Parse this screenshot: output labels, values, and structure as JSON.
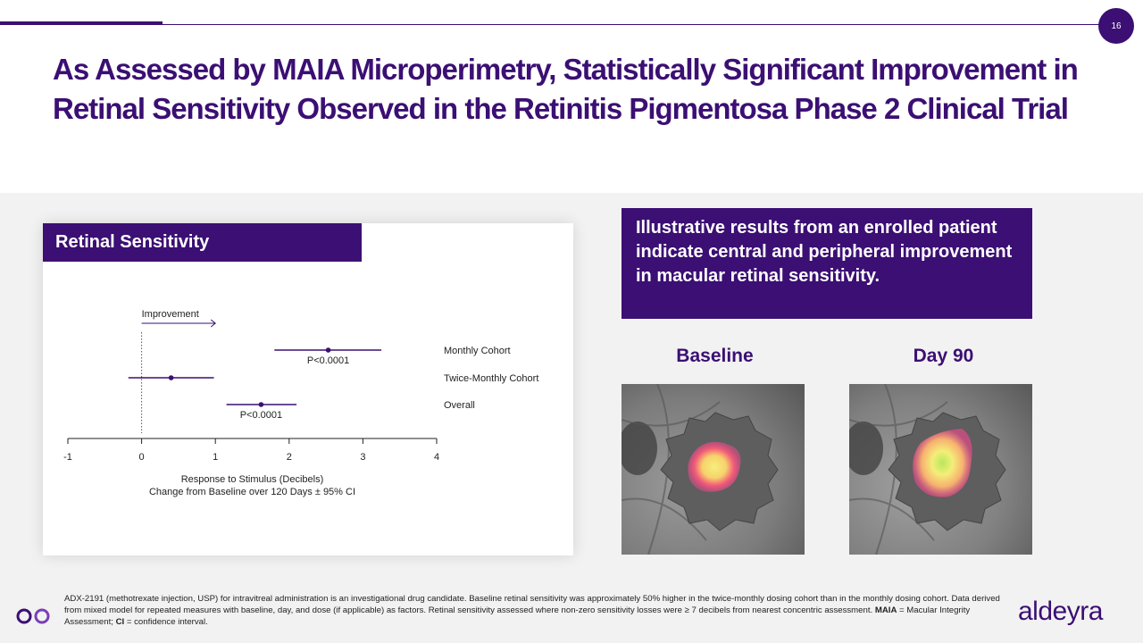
{
  "page_number": "16",
  "title": "As Assessed by MAIA Microperimetry, Statistically Significant Improvement in Retinal Sensitivity Observed in the Retinitis Pigmentosa Phase 2 Clinical Trial",
  "card": {
    "header": "Retinal Sensitivity"
  },
  "callout": "Illustrative results from an enrolled patient indicate central and peripheral improvement in macular retinal sensitivity.",
  "images": {
    "baseline_label": "Baseline",
    "day90_label": "Day 90"
  },
  "footnote": {
    "part1": "ADX-2191 (methotrexate injection, USP) for intravitreal administration is an investigational drug candidate. Baseline retinal sensitivity was approximately 50% higher in the twice-monthly dosing cohort than in the monthly dosing cohort. Data derived from mixed model for repeated measures with baseline, day, and dose (if applicable) as factors. Retinal sensitivity assessed where non-zero sensitivity losses were ≥ 7 decibels from nearest concentric assessment. ",
    "maia_abbr": "MAIA",
    "maia_def": " = Macular Integrity Assessment; ",
    "ci_abbr": "CI",
    "ci_def": " = confidence interval."
  },
  "logo": {
    "text": "aldeyra"
  },
  "colors": {
    "brand": "#3b0f73",
    "band": "#f2f2f2"
  },
  "chart_data": {
    "type": "forest",
    "xlabel": "Response to Stimulus (Decibels)",
    "xlabel2": "Change from Baseline over 120 Days ± 95% CI",
    "xlim": [
      -1,
      4
    ],
    "xticks": [
      -1,
      0,
      1,
      2,
      3,
      4
    ],
    "reference_line": 0,
    "direction_label": "Improvement",
    "series": [
      {
        "name": "Monthly Cohort",
        "estimate": 2.53,
        "ci_low": 1.8,
        "ci_high": 3.25,
        "p_value": "P<0.0001"
      },
      {
        "name": "Twice-Monthly Cohort",
        "estimate": 0.4,
        "ci_low": -0.18,
        "ci_high": 0.98,
        "p_value": ""
      },
      {
        "name": "Overall",
        "estimate": 1.62,
        "ci_low": 1.15,
        "ci_high": 2.1,
        "p_value": "P<0.0001"
      }
    ]
  }
}
